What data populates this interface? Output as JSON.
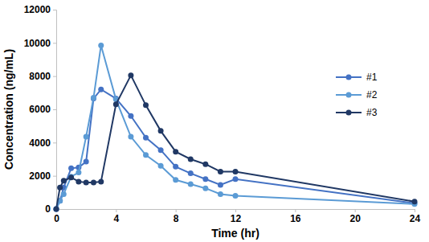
{
  "chart_data": {
    "type": "line",
    "x_label": "Time (hr)",
    "y_label": "Concentration (ng/mL)",
    "x": [
      0,
      0.25,
      0.5,
      1,
      1.5,
      2,
      2.5,
      3,
      4,
      5,
      6,
      7,
      8,
      9,
      10,
      11,
      12,
      24
    ],
    "series": [
      {
        "name": "#1",
        "color": "#4472c4",
        "values": [
          0,
          500,
          1300,
          2450,
          2500,
          2850,
          6650,
          7200,
          6650,
          5600,
          4300,
          3550,
          2550,
          2150,
          1800,
          1450,
          1800,
          350
        ]
      },
      {
        "name": "#2",
        "color": "#5b9bd5",
        "values": [
          0,
          500,
          900,
          1950,
          2200,
          4350,
          6700,
          9850,
          6600,
          4350,
          3250,
          2600,
          1750,
          1500,
          1250,
          900,
          800,
          300
        ]
      },
      {
        "name": "#3",
        "color": "#203864",
        "values": [
          0,
          1300,
          1700,
          1900,
          1650,
          1600,
          1600,
          1650,
          6300,
          8050,
          6250,
          4700,
          3450,
          3000,
          2700,
          2250,
          2250,
          450
        ]
      }
    ],
    "xlim": [
      0,
      24
    ],
    "xticks": [
      0,
      4,
      8,
      12,
      16,
      20,
      24
    ],
    "ylim": [
      0,
      12000
    ],
    "yticks": [
      0,
      2000,
      4000,
      6000,
      8000,
      10000,
      12000
    ],
    "grid": false,
    "legend": "right",
    "marker": "circle",
    "line_style": "solid"
  }
}
